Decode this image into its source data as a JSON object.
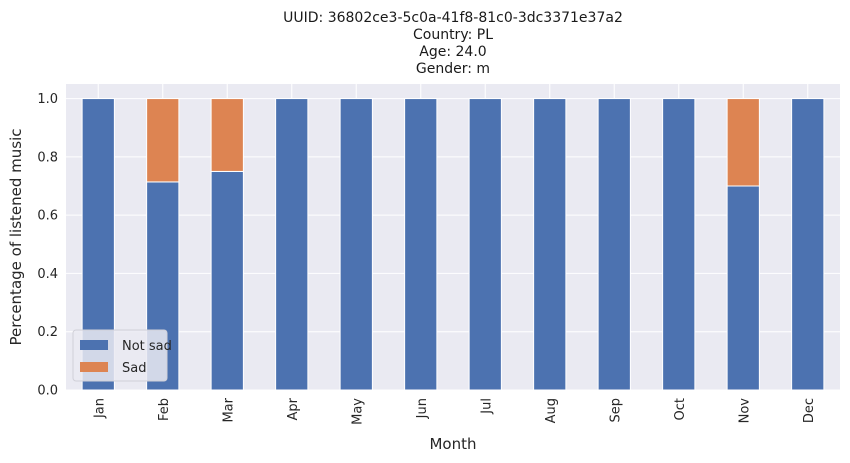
{
  "chart_data": {
    "type": "bar",
    "stacked": true,
    "title_lines": [
      "UUID: 36802ce3-5c0a-41f8-81c0-3dc3371e37a2",
      "Country: PL",
      "Age: 24.0",
      "Gender: m"
    ],
    "xlabel": "Month",
    "ylabel": "Percentage of listened music",
    "categories": [
      "Jan",
      "Feb",
      "Mar",
      "Apr",
      "May",
      "Jun",
      "Jul",
      "Aug",
      "Sep",
      "Oct",
      "Nov",
      "Dec"
    ],
    "series": [
      {
        "name": "Not sad",
        "color": "#4c72b0",
        "values": [
          1.0,
          0.714,
          0.75,
          1.0,
          1.0,
          1.0,
          1.0,
          1.0,
          1.0,
          1.0,
          0.7,
          1.0
        ]
      },
      {
        "name": "Sad",
        "color": "#dd8452",
        "values": [
          0.0,
          0.286,
          0.25,
          0.0,
          0.0,
          0.0,
          0.0,
          0.0,
          0.0,
          0.0,
          0.3,
          0.0
        ]
      }
    ],
    "ylim": [
      0,
      1.05
    ],
    "yticks": [
      "0.0",
      "0.2",
      "0.4",
      "0.6",
      "0.8",
      "1.0"
    ],
    "ytick_values": [
      0,
      0.2,
      0.4,
      0.6,
      0.8,
      1.0
    ],
    "grid": true,
    "background": "#eaeaf2",
    "legend_position": "lower-left"
  }
}
